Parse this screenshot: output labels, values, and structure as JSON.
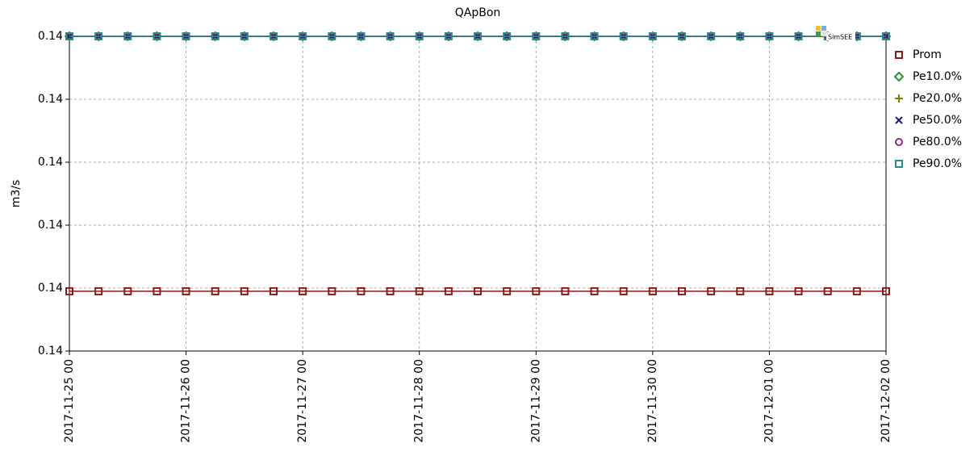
{
  "chart_data": {
    "type": "line",
    "title": "QApBon",
    "ylabel": "m3/s",
    "watermark": "SimSEE",
    "x": [
      "2017-11-25 00",
      "2017-11-25 06",
      "2017-11-25 12",
      "2017-11-25 18",
      "2017-11-26 00",
      "2017-11-26 06",
      "2017-11-26 12",
      "2017-11-26 18",
      "2017-11-27 00",
      "2017-11-27 06",
      "2017-11-27 12",
      "2017-11-27 18",
      "2017-11-28 00",
      "2017-11-28 06",
      "2017-11-28 12",
      "2017-11-28 18",
      "2017-11-29 00",
      "2017-11-29 06",
      "2017-11-29 12",
      "2017-11-29 18",
      "2017-11-30 00",
      "2017-11-30 06",
      "2017-11-30 12",
      "2017-11-30 18",
      "2017-12-01 00",
      "2017-12-01 06",
      "2017-12-01 12",
      "2017-12-01 18",
      "2017-12-02 00"
    ],
    "xtick_every": 4,
    "ylim": [
      0.1399,
      0.14
    ],
    "yticks": [
      {
        "value": 0.1399,
        "label": "0.14"
      },
      {
        "value": 0.13992,
        "label": "0.14"
      },
      {
        "value": 0.13994,
        "label": "0.14"
      },
      {
        "value": 0.13996,
        "label": "0.14"
      },
      {
        "value": 0.13998,
        "label": "0.14"
      },
      {
        "value": 0.14,
        "label": "0.14"
      }
    ],
    "grid": true,
    "series": [
      {
        "name": "Prom",
        "color": "#8b1a1a",
        "marker": "square",
        "values": [
          0.139919,
          0.139919,
          0.139919,
          0.139919,
          0.139919,
          0.139919,
          0.139919,
          0.139919,
          0.139919,
          0.139919,
          0.139919,
          0.139919,
          0.139919,
          0.139919,
          0.139919,
          0.139919,
          0.139919,
          0.139919,
          0.139919,
          0.139919,
          0.139919,
          0.139919,
          0.139919,
          0.139919,
          0.139919,
          0.139919,
          0.139919,
          0.139919,
          0.139919
        ]
      },
      {
        "name": "Pe10.0%",
        "color": "#2e8b2e",
        "marker": "diamond",
        "values": [
          0.14,
          0.14,
          0.14,
          0.14,
          0.14,
          0.14,
          0.14,
          0.14,
          0.14,
          0.14,
          0.14,
          0.14,
          0.14,
          0.14,
          0.14,
          0.14,
          0.14,
          0.14,
          0.14,
          0.14,
          0.14,
          0.14,
          0.14,
          0.14,
          0.14,
          0.14,
          0.14,
          0.14,
          0.14
        ]
      },
      {
        "name": "Pe20.0%",
        "color": "#808000",
        "marker": "plus",
        "values": [
          0.14,
          0.14,
          0.14,
          0.14,
          0.14,
          0.14,
          0.14,
          0.14,
          0.14,
          0.14,
          0.14,
          0.14,
          0.14,
          0.14,
          0.14,
          0.14,
          0.14,
          0.14,
          0.14,
          0.14,
          0.14,
          0.14,
          0.14,
          0.14,
          0.14,
          0.14,
          0.14,
          0.14,
          0.14
        ]
      },
      {
        "name": "Pe50.0%",
        "color": "#1a1a80",
        "marker": "cross",
        "values": [
          0.14,
          0.14,
          0.14,
          0.14,
          0.14,
          0.14,
          0.14,
          0.14,
          0.14,
          0.14,
          0.14,
          0.14,
          0.14,
          0.14,
          0.14,
          0.14,
          0.14,
          0.14,
          0.14,
          0.14,
          0.14,
          0.14,
          0.14,
          0.14,
          0.14,
          0.14,
          0.14,
          0.14,
          0.14
        ]
      },
      {
        "name": "Pe80.0%",
        "color": "#8b2a8b",
        "marker": "circle",
        "values": [
          0.14,
          0.14,
          0.14,
          0.14,
          0.14,
          0.14,
          0.14,
          0.14,
          0.14,
          0.14,
          0.14,
          0.14,
          0.14,
          0.14,
          0.14,
          0.14,
          0.14,
          0.14,
          0.14,
          0.14,
          0.14,
          0.14,
          0.14,
          0.14,
          0.14,
          0.14,
          0.14,
          0.14,
          0.14
        ]
      },
      {
        "name": "Pe90.0%",
        "color": "#2a8b8b",
        "marker": "square",
        "values": [
          0.14,
          0.14,
          0.14,
          0.14,
          0.14,
          0.14,
          0.14,
          0.14,
          0.14,
          0.14,
          0.14,
          0.14,
          0.14,
          0.14,
          0.14,
          0.14,
          0.14,
          0.14,
          0.14,
          0.14,
          0.14,
          0.14,
          0.14,
          0.14,
          0.14,
          0.14,
          0.14,
          0.14,
          0.14
        ]
      }
    ]
  }
}
